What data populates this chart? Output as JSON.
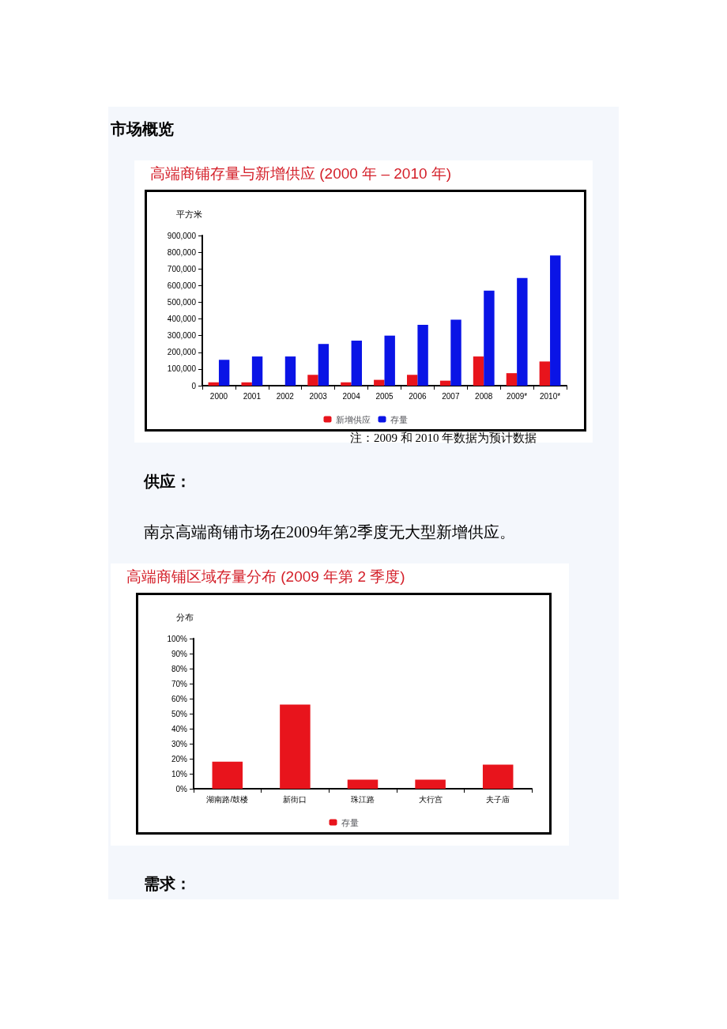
{
  "chart_data": [
    {
      "type": "bar",
      "title": "高端商铺存量与新增供应 (2000 年 – 2010 年)",
      "ylabel": "平方米",
      "categories": [
        "2000",
        "2001",
        "2002",
        "2003",
        "2004",
        "2005",
        "2006",
        "2007",
        "2008",
        "2009*",
        "2010*"
      ],
      "series": [
        {
          "name": "新增供应",
          "color": "#e8141c",
          "values": [
            20000,
            20000,
            0,
            65000,
            20000,
            35000,
            65000,
            30000,
            175000,
            75000,
            145000
          ]
        },
        {
          "name": "存量",
          "color": "#0a14e6",
          "values": [
            155000,
            175000,
            175000,
            250000,
            270000,
            300000,
            365000,
            395000,
            570000,
            645000,
            780000
          ]
        }
      ],
      "ylim": [
        0,
        900000
      ],
      "yticks": [
        0,
        {
          "value": 100000,
          "label": "100,000"
        },
        {
          "value": 200000,
          "label": "200,000"
        },
        {
          "value": 300000,
          "label": "300,000"
        },
        {
          "value": 400000,
          "label": "400,000"
        },
        {
          "value": 500000,
          "label": "500,000"
        },
        {
          "value": 600000,
          "label": "600,000"
        },
        {
          "value": 700000,
          "label": "700,000"
        },
        {
          "value": 800000,
          "label": "800,000"
        },
        {
          "value": 900000,
          "label": "900,000"
        }
      ],
      "grid": false,
      "legend": "bottom",
      "annotations": [
        "市场概览",
        "注：2009 和 2010 年数据为预计数据"
      ]
    },
    {
      "type": "bar",
      "title": "高端商铺区域存量分布 (2009 年第 2 季度)",
      "ylabel": "分布",
      "categories": [
        "湖南路/鼓楼",
        "新街口",
        "珠江路",
        "大行宫",
        "夫子庙"
      ],
      "series": [
        {
          "name": "存量",
          "color": "#e8141c",
          "values": [
            18,
            56,
            6,
            6,
            16
          ]
        }
      ],
      "ylim": [
        0,
        100
      ],
      "yticks": [
        {
          "value": 0,
          "label": "0%"
        },
        {
          "value": 10,
          "label": "10%"
        },
        {
          "value": 20,
          "label": "20%"
        },
        {
          "value": 30,
          "label": "30%"
        },
        {
          "value": 40,
          "label": "40%"
        },
        {
          "value": 50,
          "label": "50%"
        },
        {
          "value": 60,
          "label": "60%"
        },
        {
          "value": 70,
          "label": "70%"
        },
        {
          "value": 80,
          "label": "80%"
        },
        {
          "value": 90,
          "label": "90%"
        },
        {
          "value": 100,
          "label": "100%"
        }
      ],
      "grid": false,
      "legend": "bottom",
      "annotations": [
        "供应：",
        "南京高端商铺市场在2009年第2季度无大型新增供应。",
        "需求："
      ]
    }
  ]
}
